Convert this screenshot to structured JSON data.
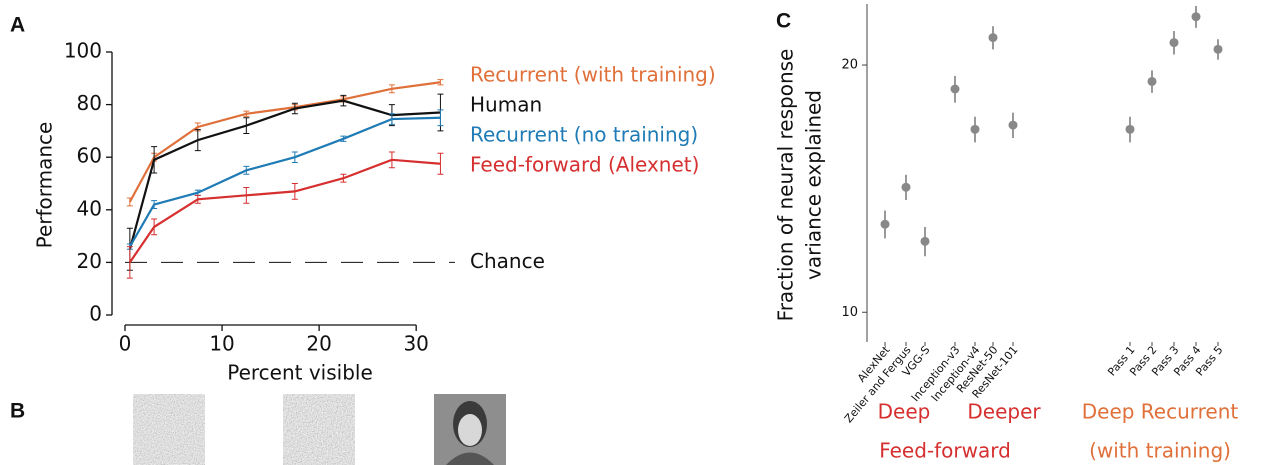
{
  "panel_labels": [
    "A",
    "B",
    "C"
  ],
  "chart_data": [
    {
      "type": "line",
      "xlabel": "Percent visible",
      "ylabel": "Performance",
      "x": [
        0.5,
        3,
        7.5,
        12.5,
        17.5,
        22.5,
        27.5,
        32.5
      ],
      "xlim": [
        0,
        34
      ],
      "ylim": [
        0,
        100
      ],
      "xticks": [
        0,
        10,
        20,
        30
      ],
      "yticks": [
        0,
        20,
        40,
        60,
        80,
        100
      ],
      "series": [
        {
          "name": "Recurrent (with training)",
          "color": "#e0703a",
          "values": [
            43,
            60,
            71.5,
            76.5,
            79,
            82,
            86,
            88.5
          ],
          "errors": [
            1.5,
            1.5,
            1.5,
            1,
            1,
            1,
            1.5,
            1
          ]
        },
        {
          "name": "Human",
          "color": "#111111",
          "values": [
            25,
            59,
            66.5,
            72,
            78.5,
            81.5,
            76,
            77
          ],
          "errors": [
            8,
            5,
            4,
            3,
            2,
            2,
            4,
            7
          ]
        },
        {
          "name": "Recurrent (no training)",
          "color": "#1f7bb5",
          "values": [
            26,
            42,
            46.5,
            55,
            60,
            67,
            74.5,
            75
          ],
          "errors": [
            1,
            1.5,
            1,
            1.5,
            2,
            1,
            2,
            3
          ]
        },
        {
          "name": "Feed-forward (Alexnet)",
          "color": "#d62f2f",
          "values": [
            20,
            33.5,
            44,
            45.5,
            47,
            52,
            59,
            57.5
          ],
          "errors": [
            6,
            3,
            1.5,
            3,
            3,
            1.5,
            3,
            4
          ]
        }
      ],
      "chance": {
        "value": 20,
        "label": "Chance"
      }
    },
    {
      "type": "errorpoint",
      "ylabel": [
        "Fraction of neural response",
        "variance explained"
      ],
      "log_y": true,
      "categories": [
        "AlexNet",
        "Zeiler and Fergus",
        "VGG-S",
        "Inception-v3",
        "Inception-v4",
        "ResNet-50",
        "ResNet-101",
        "Pass 1",
        "Pass 2",
        "Pass 3",
        "Pass 4",
        "Pass 5"
      ],
      "values": [
        12.8,
        14.2,
        12.2,
        18.7,
        16.7,
        21.6,
        16.9,
        16.7,
        19.1,
        21.3,
        22.9,
        20.9
      ],
      "errors": [
        0.5,
        0.5,
        0.5,
        0.7,
        0.6,
        0.7,
        0.6,
        0.6,
        0.6,
        0.7,
        0.7,
        0.6
      ],
      "color": "#888888",
      "ylim": [
        9.2,
        24
      ],
      "yticks": [
        10,
        20
      ],
      "annotations": [
        {
          "text": "Deep",
          "color": "#d62f2f"
        },
        {
          "text": "Deeper",
          "color": "#d62f2f"
        },
        {
          "text": "Feed-forward",
          "color": "#d62f2f"
        },
        {
          "text": "Deep Recurrent",
          "color": "#e0703a"
        },
        {
          "text": "(with training)",
          "color": "#e0703a"
        }
      ]
    }
  ]
}
